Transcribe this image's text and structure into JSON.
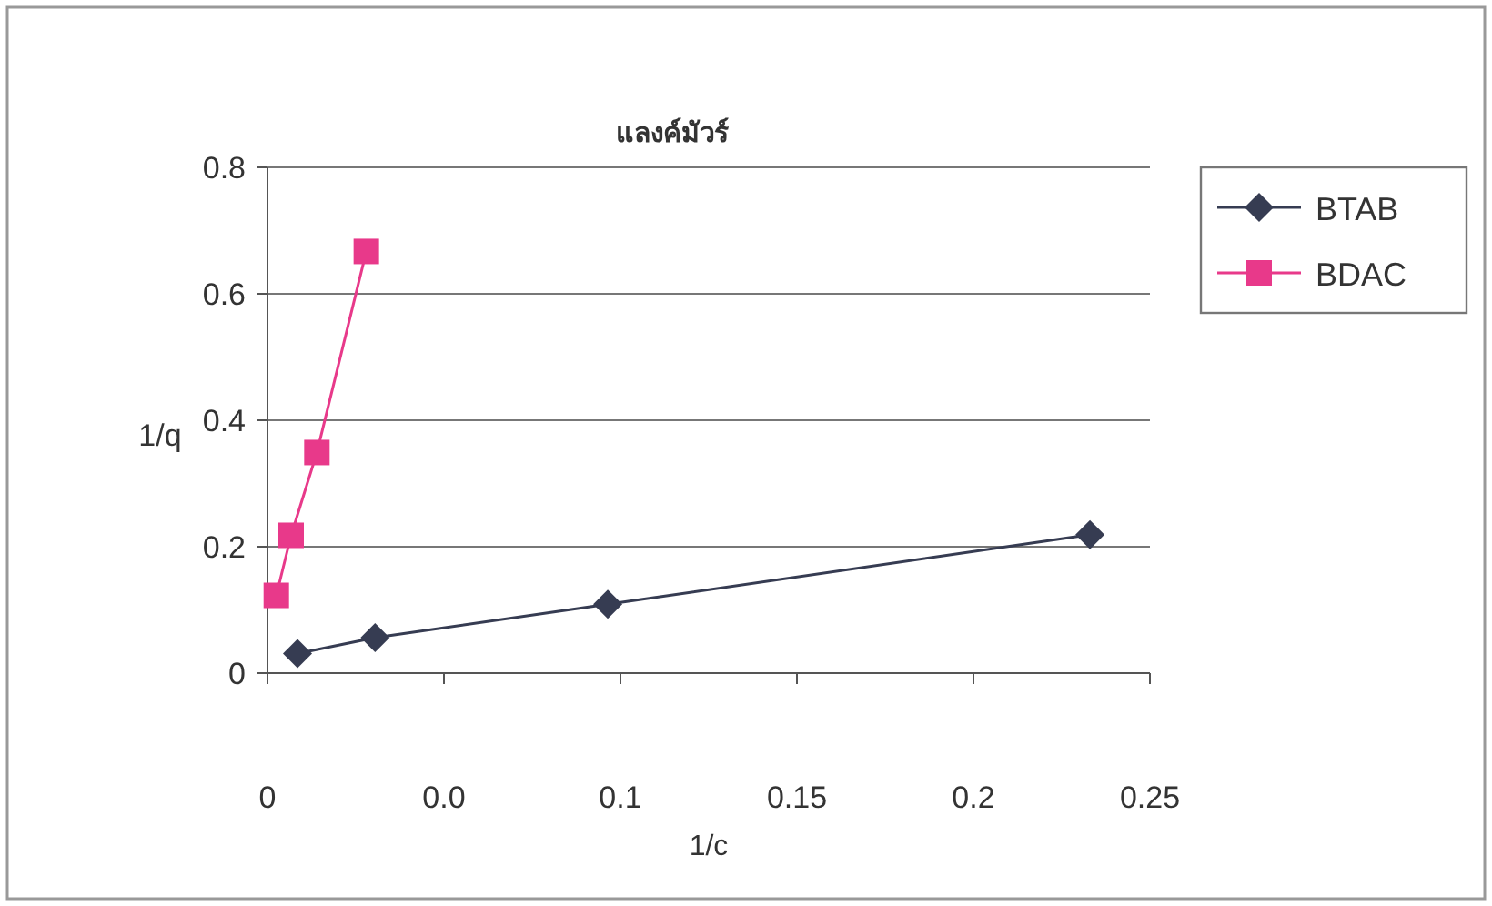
{
  "chart_data": {
    "type": "line",
    "title": "แลงค์มัวร์",
    "xlabel": "1/c",
    "ylabel": "1/q",
    "xlim": [
      0,
      0.25
    ],
    "xticks": [
      {
        "value": 0,
        "label": "0"
      },
      {
        "value": 0.05,
        "label": "0.0"
      },
      0.1,
      0.15,
      0.2,
      0.25
    ],
    "ylim": [
      0,
      0.8
    ],
    "yticks": [
      {
        "value": 0,
        "label": "0"
      },
      0.2,
      0.4,
      0.6,
      0.8
    ],
    "grid": "y",
    "legend": "right",
    "series": [
      {
        "name": "BTAB",
        "color": "#363c52",
        "marker": "diamond",
        "x": [
          0.0085,
          0.0305,
          0.0964,
          0.233
        ],
        "values": [
          0.031,
          0.056,
          0.109,
          0.219
        ]
      },
      {
        "name": "BDAC",
        "color": "#e8398a",
        "marker": "square",
        "x": [
          0.0025,
          0.0067,
          0.014,
          0.028
        ],
        "values": [
          0.123,
          0.218,
          0.349,
          0.667
        ]
      }
    ]
  }
}
